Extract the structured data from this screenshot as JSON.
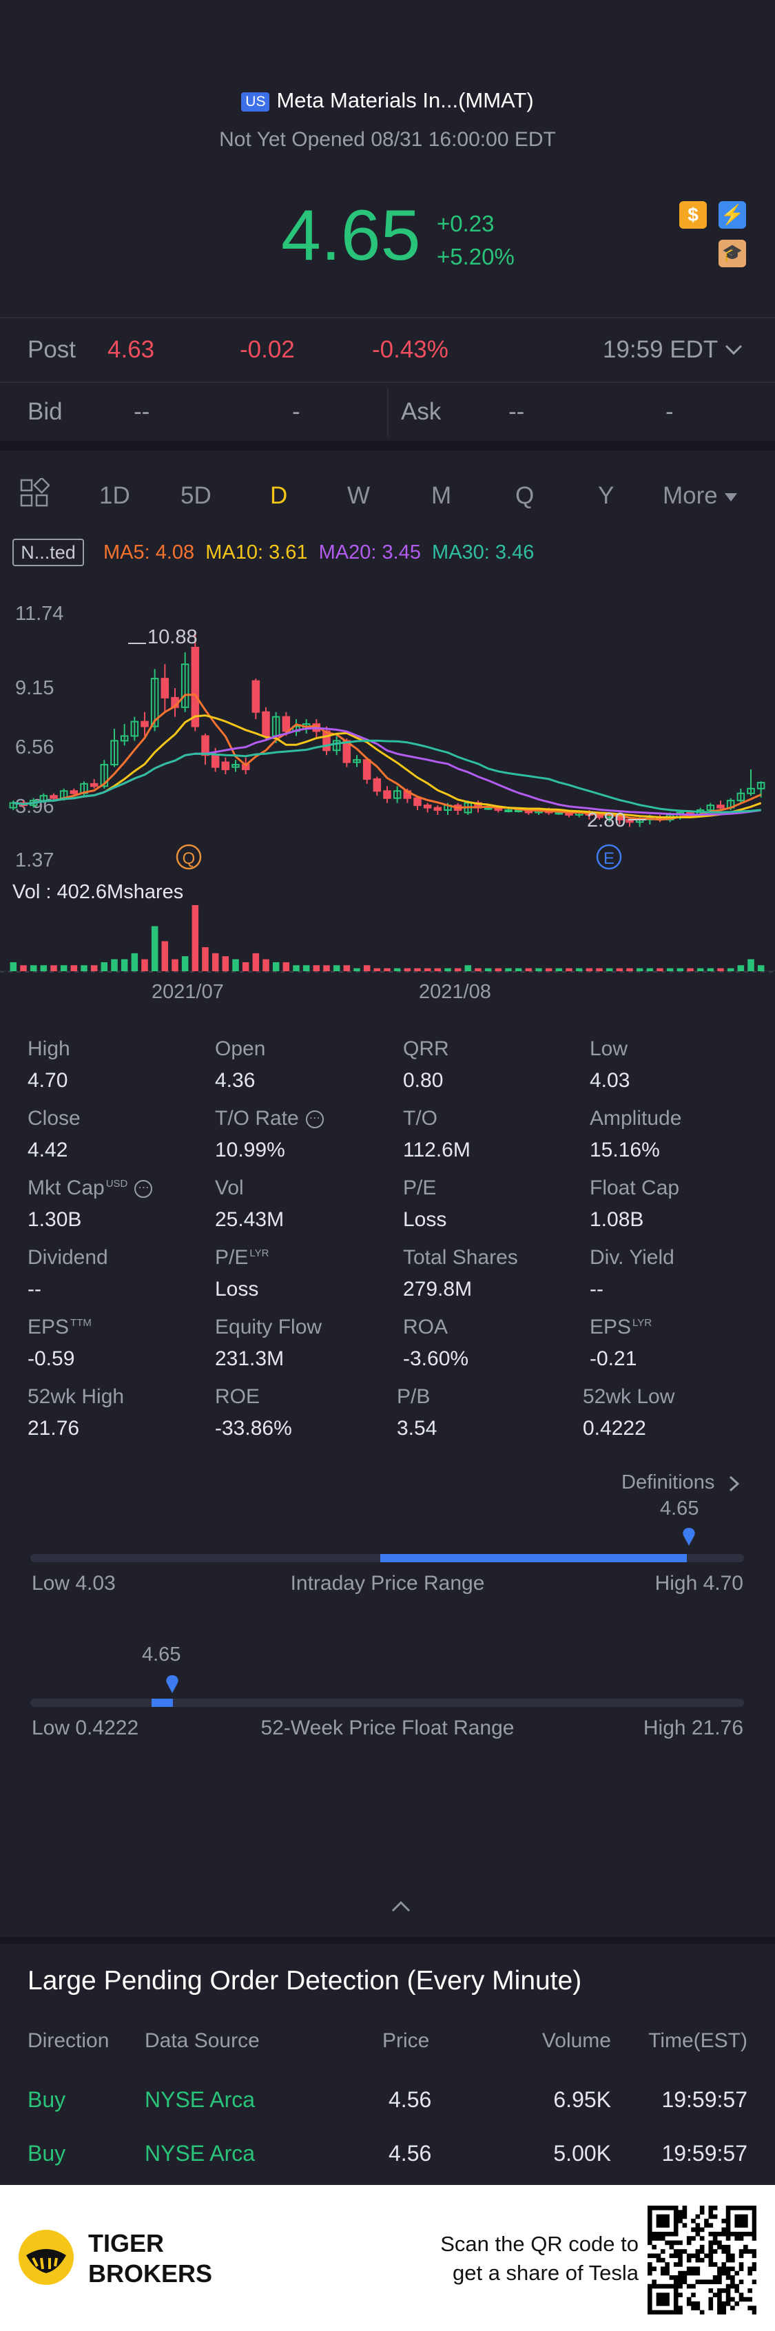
{
  "header": {
    "market_badge": "US",
    "title": "Meta Materials In...(MMAT)",
    "status": "Not Yet Opened 08/31 16:00:00 EDT",
    "price": "4.65",
    "change": "+0.23",
    "change_pct": "+5.20%",
    "icons": [
      "dollar-icon",
      "lightning-icon",
      "learn-icon"
    ]
  },
  "post": {
    "label": "Post",
    "price": "4.63",
    "change": "-0.02",
    "change_pct": "-0.43%",
    "time": "19:59 EDT"
  },
  "bidask": {
    "bid_label": "Bid",
    "bid_price": "--",
    "bid_size": "-",
    "ask_label": "Ask",
    "ask_price": "--",
    "ask_size": "-"
  },
  "tabs": {
    "items": [
      "1D",
      "5D",
      "D",
      "W",
      "M",
      "Q",
      "Y",
      "More"
    ],
    "active": "D"
  },
  "indicators": {
    "adjust": "N...ted",
    "ma5": "MA5: 4.08",
    "ma10": "MA10: 3.61",
    "ma20": "MA20: 3.45",
    "ma30": "MA30: 3.46",
    "colors": {
      "ma5": "#f6732f",
      "ma10": "#f5c518",
      "ma20": "#b25cf0",
      "ma30": "#2fbfa0"
    }
  },
  "chart_data": {
    "type": "candlestick",
    "y_axis_labels": [
      "11.74",
      "9.15",
      "6.56",
      "3.96",
      "1.37"
    ],
    "ylim": [
      1.37,
      11.74
    ],
    "x_labels": [
      "2021/07",
      "2021/08"
    ],
    "high_marker": "10.88",
    "low_marker": "2.80",
    "event_markers": [
      "Q",
      "E"
    ],
    "volume_label": "Vol  : 402.6Mshares",
    "candles": [
      {
        "o": 3.6,
        "c": 3.8,
        "h": 3.9,
        "l": 3.5,
        "v": 3
      },
      {
        "o": 3.8,
        "c": 3.7,
        "h": 3.9,
        "l": 3.6,
        "v": 2
      },
      {
        "o": 3.7,
        "c": 3.9,
        "h": 4.0,
        "l": 3.6,
        "v": 2
      },
      {
        "o": 3.9,
        "c": 4.1,
        "h": 4.2,
        "l": 3.8,
        "v": 2
      },
      {
        "o": 4.1,
        "c": 4.0,
        "h": 4.2,
        "l": 3.9,
        "v": 2
      },
      {
        "o": 4.0,
        "c": 4.3,
        "h": 4.4,
        "l": 3.9,
        "v": 2
      },
      {
        "o": 4.3,
        "c": 4.2,
        "h": 4.4,
        "l": 4.1,
        "v": 2
      },
      {
        "o": 4.2,
        "c": 4.6,
        "h": 4.7,
        "l": 4.1,
        "v": 2
      },
      {
        "o": 4.6,
        "c": 4.5,
        "h": 4.8,
        "l": 4.4,
        "v": 2
      },
      {
        "o": 4.5,
        "c": 5.4,
        "h": 5.6,
        "l": 4.4,
        "v": 3
      },
      {
        "o": 5.4,
        "c": 6.4,
        "h": 6.9,
        "l": 5.3,
        "v": 4
      },
      {
        "o": 6.4,
        "c": 6.6,
        "h": 7.1,
        "l": 6.2,
        "v": 4
      },
      {
        "o": 6.6,
        "c": 7.2,
        "h": 7.4,
        "l": 6.4,
        "v": 6
      },
      {
        "o": 7.2,
        "c": 7.0,
        "h": 7.6,
        "l": 6.6,
        "v": 4
      },
      {
        "o": 7.0,
        "c": 9.0,
        "h": 9.4,
        "l": 6.8,
        "v": 15
      },
      {
        "o": 9.0,
        "c": 8.2,
        "h": 9.6,
        "l": 7.6,
        "v": 10
      },
      {
        "o": 8.2,
        "c": 7.8,
        "h": 8.6,
        "l": 7.4,
        "v": 4
      },
      {
        "o": 7.8,
        "c": 9.6,
        "h": 10.1,
        "l": 7.6,
        "v": 5
      },
      {
        "o": 10.3,
        "c": 7.0,
        "h": 10.9,
        "l": 6.8,
        "v": 22
      },
      {
        "o": 6.6,
        "c": 5.8,
        "h": 6.7,
        "l": 5.4,
        "v": 8
      },
      {
        "o": 5.8,
        "c": 5.3,
        "h": 6.1,
        "l": 5.1,
        "v": 6
      },
      {
        "o": 5.5,
        "c": 5.2,
        "h": 5.7,
        "l": 5.0,
        "v": 5
      },
      {
        "o": 5.3,
        "c": 5.4,
        "h": 5.6,
        "l": 5.1,
        "v": 4
      },
      {
        "o": 5.4,
        "c": 5.2,
        "h": 5.7,
        "l": 5.0,
        "v": 3
      },
      {
        "o": 8.9,
        "c": 7.6,
        "h": 9.0,
        "l": 7.3,
        "v": 6
      },
      {
        "o": 7.6,
        "c": 6.6,
        "h": 7.8,
        "l": 6.4,
        "v": 4
      },
      {
        "o": 6.6,
        "c": 7.4,
        "h": 7.6,
        "l": 6.3,
        "v": 3
      },
      {
        "o": 7.4,
        "c": 6.8,
        "h": 7.6,
        "l": 6.6,
        "v": 3
      },
      {
        "o": 6.8,
        "c": 7.0,
        "h": 7.3,
        "l": 6.6,
        "v": 2
      },
      {
        "o": 6.9,
        "c": 7.1,
        "h": 7.3,
        "l": 6.7,
        "v": 2
      },
      {
        "o": 7.1,
        "c": 6.8,
        "h": 7.3,
        "l": 6.5,
        "v": 2
      },
      {
        "o": 6.8,
        "c": 6.0,
        "h": 7.0,
        "l": 5.8,
        "v": 2
      },
      {
        "o": 6.0,
        "c": 6.4,
        "h": 6.6,
        "l": 5.8,
        "v": 2
      },
      {
        "o": 6.4,
        "c": 5.5,
        "h": 6.5,
        "l": 5.3,
        "v": 2
      },
      {
        "o": 5.5,
        "c": 5.6,
        "h": 5.8,
        "l": 5.3,
        "v": 1
      },
      {
        "o": 5.6,
        "c": 4.8,
        "h": 5.7,
        "l": 4.6,
        "v": 2
      },
      {
        "o": 4.8,
        "c": 4.3,
        "h": 4.9,
        "l": 4.1,
        "v": 1
      },
      {
        "o": 4.3,
        "c": 4.0,
        "h": 4.5,
        "l": 3.8,
        "v": 1
      },
      {
        "o": 4.0,
        "c": 4.3,
        "h": 4.5,
        "l": 3.8,
        "v": 1
      },
      {
        "o": 4.3,
        "c": 4.0,
        "h": 4.4,
        "l": 3.8,
        "v": 1
      },
      {
        "o": 4.0,
        "c": 3.7,
        "h": 4.1,
        "l": 3.5,
        "v": 1
      },
      {
        "o": 3.7,
        "c": 3.6,
        "h": 3.8,
        "l": 3.4,
        "v": 1
      },
      {
        "o": 3.6,
        "c": 3.5,
        "h": 3.7,
        "l": 3.3,
        "v": 1
      },
      {
        "o": 3.5,
        "c": 3.7,
        "h": 3.8,
        "l": 3.3,
        "v": 1
      },
      {
        "o": 3.7,
        "c": 3.5,
        "h": 3.8,
        "l": 3.3,
        "v": 1
      },
      {
        "o": 3.4,
        "c": 3.8,
        "h": 3.9,
        "l": 3.3,
        "v": 2
      },
      {
        "o": 3.8,
        "c": 3.6,
        "h": 3.9,
        "l": 3.4,
        "v": 1
      },
      {
        "o": 3.6,
        "c": 3.6,
        "h": 3.7,
        "l": 3.5,
        "v": 1
      },
      {
        "o": 3.6,
        "c": 3.5,
        "h": 3.7,
        "l": 3.4,
        "v": 1
      },
      {
        "o": 3.5,
        "c": 3.5,
        "h": 3.6,
        "l": 3.4,
        "v": 1
      },
      {
        "o": 3.5,
        "c": 3.5,
        "h": 3.6,
        "l": 3.4,
        "v": 1
      },
      {
        "o": 3.5,
        "c": 3.4,
        "h": 3.6,
        "l": 3.3,
        "v": 1
      },
      {
        "o": 3.4,
        "c": 3.5,
        "h": 3.6,
        "l": 3.3,
        "v": 1
      },
      {
        "o": 3.5,
        "c": 3.4,
        "h": 3.6,
        "l": 3.3,
        "v": 1
      },
      {
        "o": 3.4,
        "c": 3.4,
        "h": 3.5,
        "l": 3.3,
        "v": 1
      },
      {
        "o": 3.4,
        "c": 3.3,
        "h": 3.5,
        "l": 3.2,
        "v": 1
      },
      {
        "o": 3.3,
        "c": 3.4,
        "h": 3.5,
        "l": 3.2,
        "v": 1
      },
      {
        "o": 3.4,
        "c": 3.3,
        "h": 3.5,
        "l": 3.1,
        "v": 1
      },
      {
        "o": 3.3,
        "c": 3.2,
        "h": 3.4,
        "l": 3.1,
        "v": 1
      },
      {
        "o": 3.2,
        "c": 3.3,
        "h": 3.4,
        "l": 3.0,
        "v": 1
      },
      {
        "o": 3.3,
        "c": 3.1,
        "h": 3.4,
        "l": 2.9,
        "v": 1
      },
      {
        "o": 3.1,
        "c": 3.0,
        "h": 3.2,
        "l": 2.8,
        "v": 1
      },
      {
        "o": 3.0,
        "c": 3.1,
        "h": 3.2,
        "l": 2.8,
        "v": 1
      },
      {
        "o": 3.1,
        "c": 3.2,
        "h": 3.3,
        "l": 2.9,
        "v": 1
      },
      {
        "o": 3.2,
        "c": 3.1,
        "h": 3.3,
        "l": 3.0,
        "v": 1
      },
      {
        "o": 3.1,
        "c": 3.3,
        "h": 3.4,
        "l": 3.0,
        "v": 1
      },
      {
        "o": 3.2,
        "c": 3.4,
        "h": 3.5,
        "l": 3.1,
        "v": 1
      },
      {
        "o": 3.4,
        "c": 3.3,
        "h": 3.5,
        "l": 3.2,
        "v": 1
      },
      {
        "o": 3.3,
        "c": 3.5,
        "h": 3.6,
        "l": 3.2,
        "v": 1
      },
      {
        "o": 3.5,
        "c": 3.7,
        "h": 3.8,
        "l": 3.4,
        "v": 1
      },
      {
        "o": 3.7,
        "c": 3.6,
        "h": 3.9,
        "l": 3.5,
        "v": 1
      },
      {
        "o": 3.6,
        "c": 3.9,
        "h": 4.0,
        "l": 3.5,
        "v": 1
      },
      {
        "o": 3.9,
        "c": 4.2,
        "h": 4.4,
        "l": 3.8,
        "v": 2
      },
      {
        "o": 4.2,
        "c": 4.4,
        "h": 5.2,
        "l": 4.1,
        "v": 4
      },
      {
        "o": 4.4,
        "c": 4.65,
        "h": 4.7,
        "l": 4.03,
        "v": 2
      }
    ]
  },
  "stats": [
    {
      "label": "High",
      "value": "4.70",
      "sup": ""
    },
    {
      "label": "Open",
      "value": "4.36",
      "sup": ""
    },
    {
      "label": "QRR",
      "value": "0.80",
      "sup": ""
    },
    {
      "label": "Low",
      "value": "4.03",
      "sup": ""
    },
    {
      "label": "Close",
      "value": "4.42",
      "sup": ""
    },
    {
      "label": "T/O Rate",
      "value": "10.99%",
      "sup": "",
      "info": true
    },
    {
      "label": "T/O",
      "value": "112.6M",
      "sup": ""
    },
    {
      "label": "Amplitude",
      "value": "15.16%",
      "sup": ""
    },
    {
      "label": "Mkt Cap",
      "value": "1.30B",
      "sup": "USD",
      "info": true
    },
    {
      "label": "Vol",
      "value": "25.43M",
      "sup": ""
    },
    {
      "label": "P/E",
      "value": "Loss",
      "sup": ""
    },
    {
      "label": "Float Cap",
      "value": "1.08B",
      "sup": ""
    },
    {
      "label": "Dividend",
      "value": "--",
      "sup": ""
    },
    {
      "label": "P/E",
      "value": "Loss",
      "sup": "LYR"
    },
    {
      "label": "Total Shares",
      "value": "279.8M",
      "sup": ""
    },
    {
      "label": "Div. Yield",
      "value": "--",
      "sup": ""
    },
    {
      "label": "EPS",
      "value": "-0.59",
      "sup": "TTM"
    },
    {
      "label": "Equity Flow",
      "value": "231.3M",
      "sup": ""
    },
    {
      "label": "ROA",
      "value": "-3.60%",
      "sup": ""
    },
    {
      "label": "EPS",
      "value": "-0.21",
      "sup": "LYR"
    },
    {
      "label": "52wk High",
      "value": "21.76",
      "sup": ""
    },
    {
      "label": "ROE",
      "value": "-33.86%",
      "sup": ""
    },
    {
      "label": "P/B",
      "value": "3.54",
      "sup": ""
    },
    {
      "label": "52wk Low",
      "value": "0.4222",
      "sup": ""
    }
  ],
  "definitions_link": "Definitions",
  "ranges": {
    "intraday": {
      "marker": "4.65",
      "low": "Low 4.03",
      "title": "Intraday Price Range",
      "high": "High 4.70",
      "fill_start": 0.49,
      "fill_end": 0.92
    },
    "week52": {
      "marker": "4.65",
      "low": "Low 0.4222",
      "title": "52-Week Price Float Range",
      "high": "High 21.76",
      "fill_start": 0.17,
      "fill_end": 0.2
    }
  },
  "orders": {
    "title": "Large Pending Order Detection (Every Minute)",
    "headers": [
      "Direction",
      "Data Source",
      "Price",
      "Volume",
      "Time(EST)"
    ],
    "rows": [
      {
        "direction": "Buy",
        "source": "NYSE Arca",
        "price": "4.56",
        "volume": "6.95K",
        "time": "19:59:57"
      },
      {
        "direction": "Buy",
        "source": "NYSE Arca",
        "price": "4.56",
        "volume": "5.00K",
        "time": "19:59:57"
      }
    ]
  },
  "footer": {
    "brand_line1": "TIGER",
    "brand_line2": "BROKERS",
    "promo_line1": "Scan the QR code to",
    "promo_line2": "get a share of Tesla"
  }
}
